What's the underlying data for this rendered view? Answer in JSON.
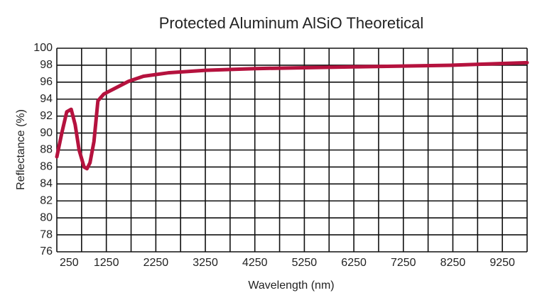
{
  "chart_data": {
    "type": "line",
    "title": "Protected Aluminum AlSiO Theoretical",
    "x_label": "Wavelength (nm)",
    "y_label": "Reflectance (%)",
    "x": [
      250,
      350,
      450,
      540,
      620,
      700,
      800,
      860,
      920,
      1000,
      1080,
      1200,
      1400,
      1700,
      2000,
      2500,
      3250,
      4250,
      5250,
      6250,
      7250,
      8250,
      9250,
      9750
    ],
    "series": [
      {
        "name": "Reflectance",
        "color": "#b5123e",
        "values": [
          87.2,
          90,
          92.5,
          92.8,
          91,
          88,
          86,
          85.8,
          86.5,
          89,
          93.8,
          94.6,
          95.2,
          96.1,
          96.7,
          97.1,
          97.4,
          97.6,
          97.7,
          97.8,
          97.9,
          98.0,
          98.2,
          98.3
        ]
      }
    ],
    "xlim": [
      250,
      9750
    ],
    "ylim": [
      76,
      100
    ],
    "xticks": [
      250,
      1250,
      2250,
      3250,
      4250,
      5250,
      6250,
      7250,
      8250,
      9250
    ],
    "xminor": [
      750,
      1750,
      2750,
      3750,
      4750,
      5750,
      6750,
      7750,
      8750
    ],
    "yticks": [
      76,
      78,
      80,
      82,
      84,
      86,
      88,
      90,
      92,
      94,
      96,
      98,
      100
    ],
    "grid": true
  }
}
